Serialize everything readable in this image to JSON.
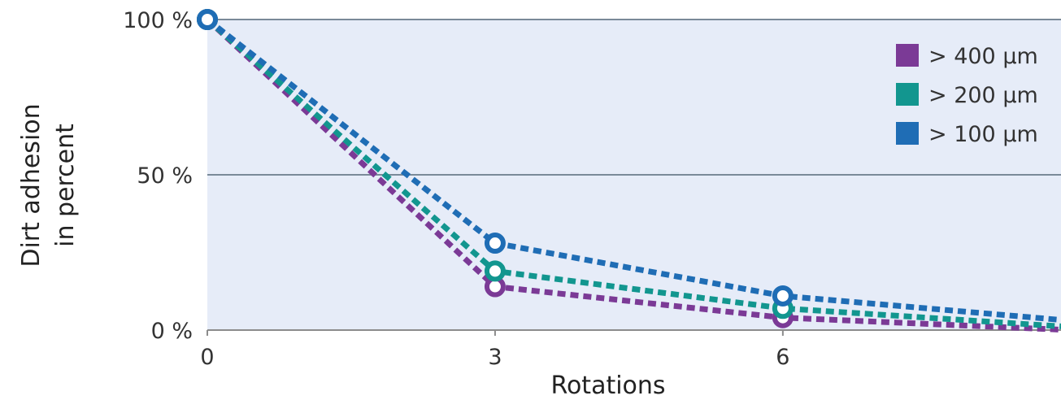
{
  "chart_data": {
    "type": "line",
    "title": "",
    "xlabel": "Rotations",
    "ylabel_lines": [
      "Dirt adhesion",
      "in percent"
    ],
    "x": [
      0,
      3,
      6,
      9
    ],
    "x_ticks": [
      "0",
      "3",
      "6"
    ],
    "y_ticks": [
      "0 %",
      "50 %",
      "100 %"
    ],
    "xlim": [
      0,
      8.9
    ],
    "ylim": [
      0,
      100
    ],
    "grid": true,
    "legend_position": "top-right",
    "series": [
      {
        "name": "> 400 µm",
        "color": "#7B3A96",
        "values": [
          100,
          14,
          4,
          0
        ]
      },
      {
        "name": "> 200 µm",
        "color": "#12968F",
        "values": [
          100,
          19,
          7,
          1
        ]
      },
      {
        "name": "> 100 µm",
        "color": "#1F6DB5",
        "values": [
          100,
          28,
          11,
          3
        ]
      }
    ],
    "colors": {
      "plot_background": "#E6ECF8",
      "grid": "#7A8A99",
      "axis": "#8C8C8C"
    }
  }
}
